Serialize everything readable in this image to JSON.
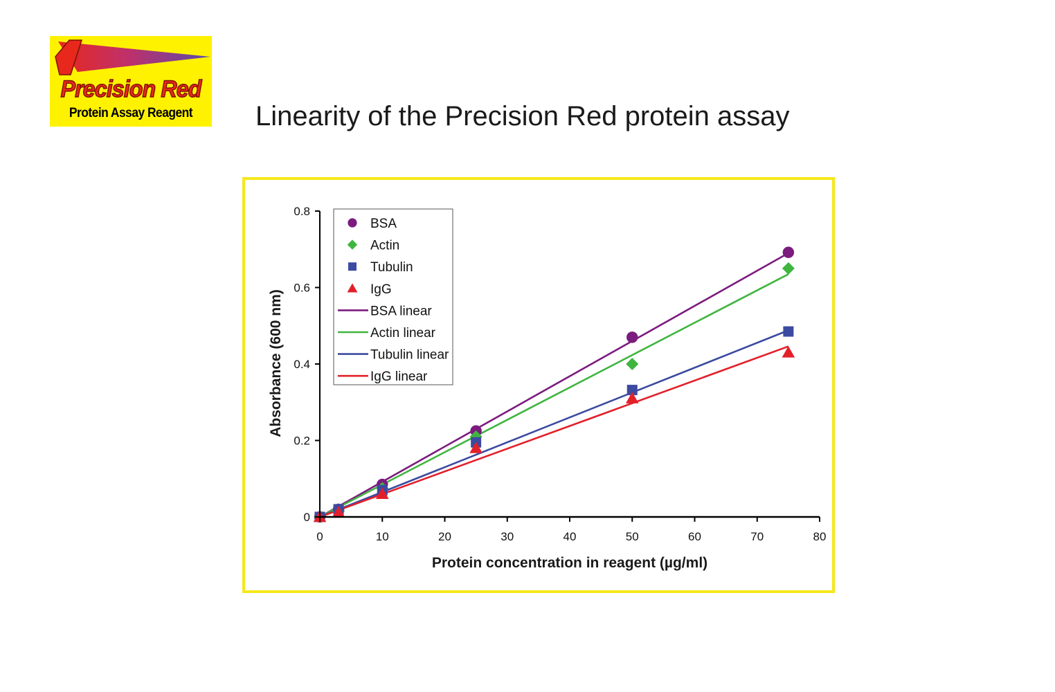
{
  "logo": {
    "wordmark": "Precision Red",
    "subtitle": "Protein Assay Reagent",
    "background": "#fff200"
  },
  "page_title": "Linearity of the Precision Red protein assay",
  "frame_color": "#f5e81a",
  "chart_data": {
    "type": "scatter",
    "title": "",
    "xlabel": "Protein concentration in reagent (µg/ml)",
    "ylabel": "Absorbance (600 nm)",
    "xlim": [
      0,
      80
    ],
    "ylim": [
      0,
      0.8
    ],
    "x_ticks": [
      0,
      10,
      20,
      30,
      40,
      50,
      60,
      70,
      80
    ],
    "y_ticks": [
      0,
      0.2,
      0.4,
      0.6,
      0.8
    ],
    "x_tick_labels": [
      "0",
      "10",
      "20",
      "30",
      "40",
      "50",
      "60",
      "70",
      "80"
    ],
    "y_tick_labels": [
      "0",
      "0.2",
      "0.4",
      "0.6",
      "0.8"
    ],
    "grid": false,
    "legend_position": "top-left",
    "series": [
      {
        "name": "BSA",
        "marker": "circle",
        "color": "#7b1b7e",
        "x": [
          0,
          3,
          10,
          25,
          50,
          75
        ],
        "y": [
          0,
          0.02,
          0.085,
          0.225,
          0.47,
          0.692
        ]
      },
      {
        "name": "Actin",
        "marker": "diamond",
        "color": "#3fb53f",
        "x": [
          0,
          3,
          10,
          25,
          50,
          75
        ],
        "y": [
          0,
          0.015,
          0.075,
          0.21,
          0.4,
          0.65
        ]
      },
      {
        "name": "Tubulin",
        "marker": "square",
        "color": "#3c4aa0",
        "x": [
          0,
          3,
          10,
          25,
          50,
          75
        ],
        "y": [
          0,
          0.02,
          0.07,
          0.195,
          0.332,
          0.485
        ]
      },
      {
        "name": "IgG",
        "marker": "triangle",
        "color": "#e3202a",
        "x": [
          0,
          3,
          10,
          25,
          50,
          75
        ],
        "y": [
          0,
          0.012,
          0.06,
          0.18,
          0.31,
          0.43
        ]
      }
    ],
    "trendlines": [
      {
        "name": "BSA linear",
        "color": "#7b1b7e",
        "x": [
          0,
          75
        ],
        "y": [
          0,
          0.69
        ]
      },
      {
        "name": "Actin linear",
        "color": "#3fb53f",
        "x": [
          0,
          75
        ],
        "y": [
          0,
          0.635
        ]
      },
      {
        "name": "Tubulin linear",
        "color": "#3c4aa0",
        "x": [
          0,
          75
        ],
        "y": [
          0,
          0.488
        ]
      },
      {
        "name": "IgG linear",
        "color": "#e3202a",
        "x": [
          0,
          75
        ],
        "y": [
          0,
          0.446
        ]
      }
    ]
  }
}
